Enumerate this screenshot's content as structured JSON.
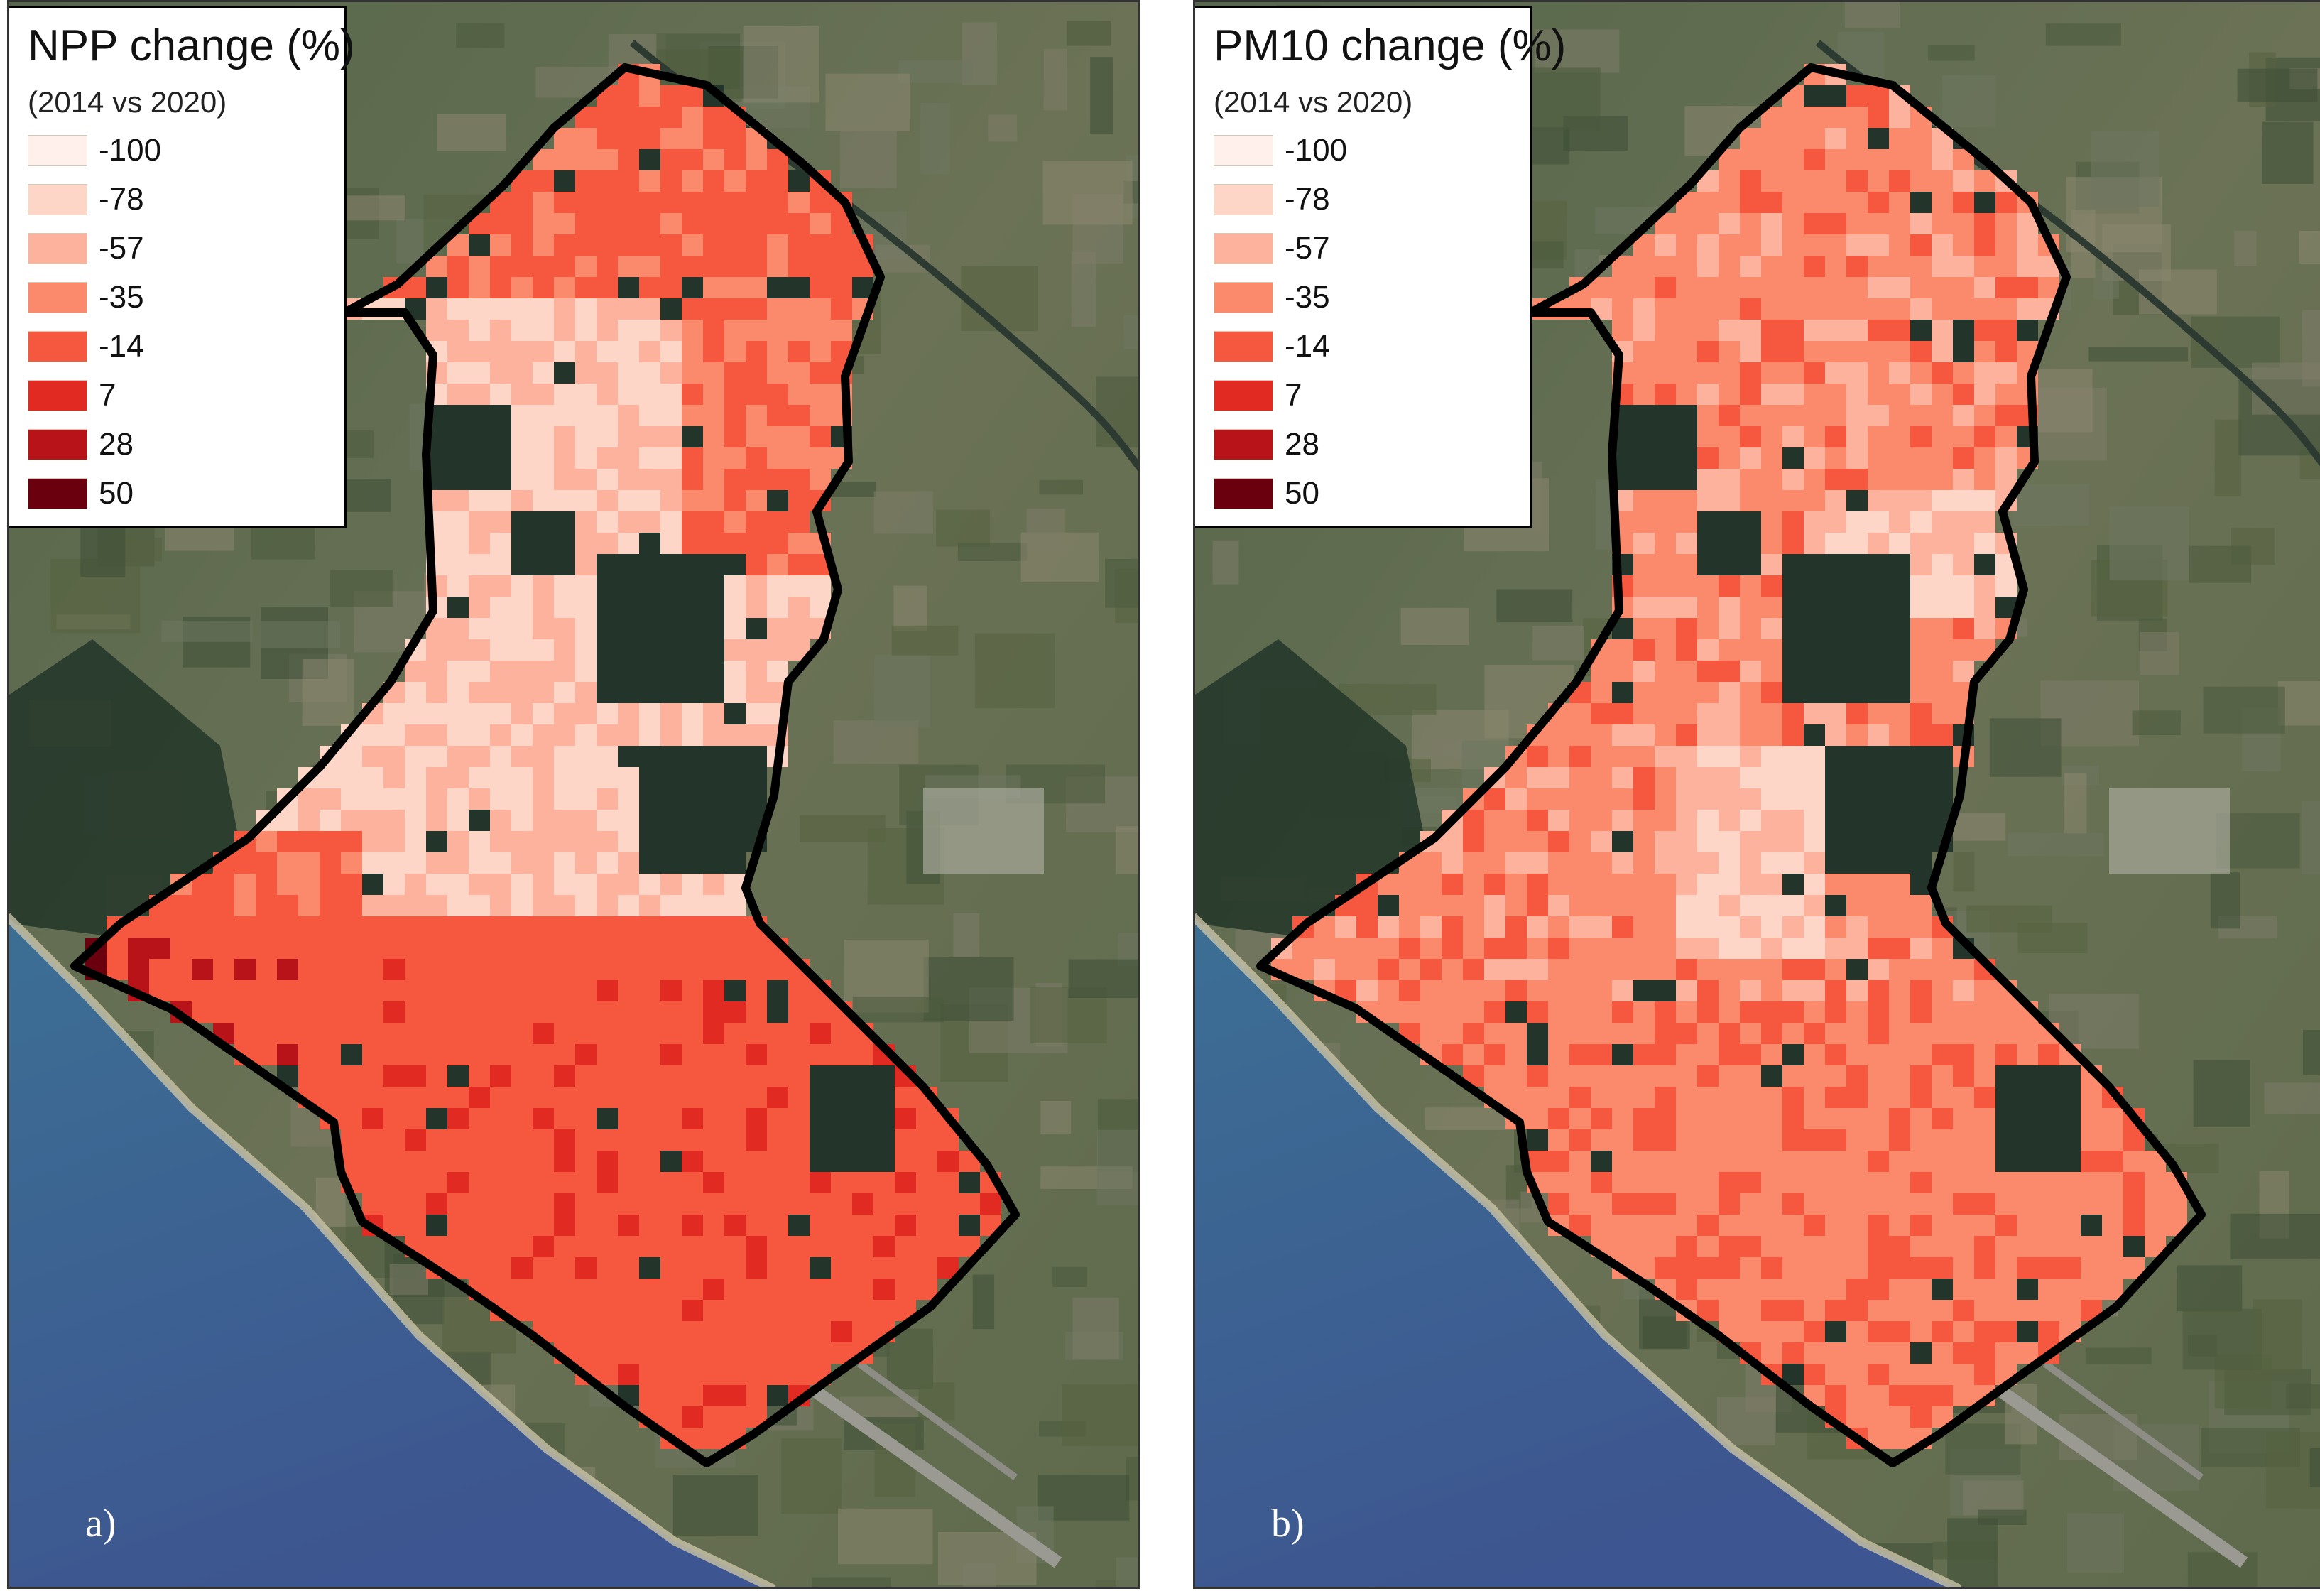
{
  "legend_classes": [
    {
      "label": "-100",
      "color": "#fff0ec"
    },
    {
      "label": "-78",
      "color": "#fdd6c8"
    },
    {
      "label": "-57",
      "color": "#fcb29c"
    },
    {
      "label": "-35",
      "color": "#fb8a6c"
    },
    {
      "label": "-14",
      "color": "#f5583f"
    },
    {
      "label": "7",
      "color": "#e02a22"
    },
    {
      "label": "28",
      "color": "#b71318"
    },
    {
      "label": "50",
      "color": "#6a000d"
    }
  ],
  "panels": [
    {
      "id": "a",
      "legend_title": "NPP change (%)",
      "legend_subtitle": "(2014 vs 2020)",
      "panel_label": "a)"
    },
    {
      "id": "b",
      "legend_title": "PM10 change (%)",
      "legend_subtitle": "(2014 vs 2020)",
      "panel_label": "b)"
    }
  ],
  "colors": {
    "sea": "#3c6f94",
    "sea_deep": "#3d5590",
    "land": "#5a6a4a",
    "forest": "#23342a",
    "boundary": "#000000"
  }
}
